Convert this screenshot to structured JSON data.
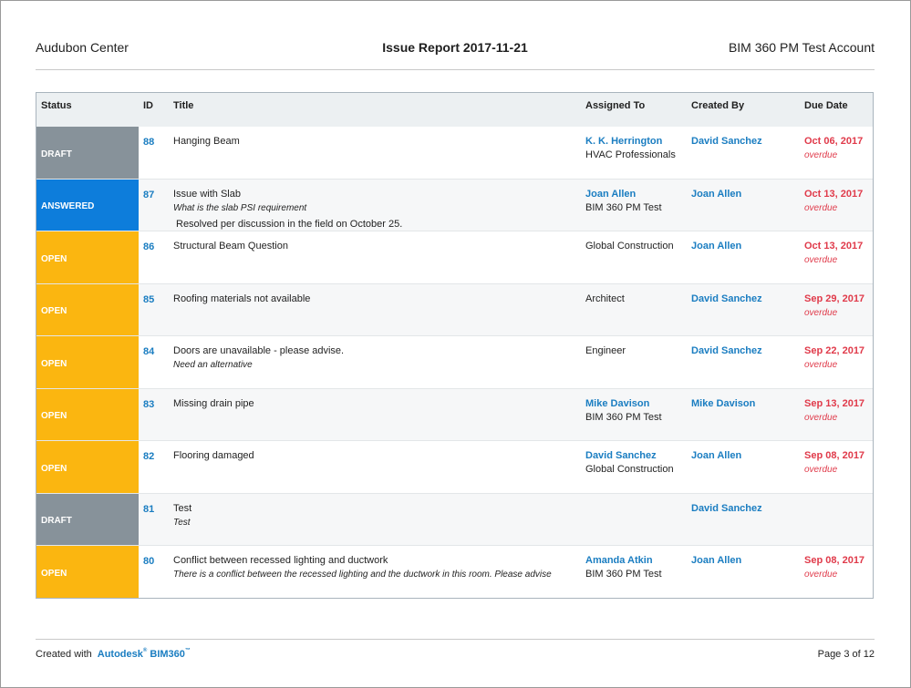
{
  "header": {
    "project": "Audubon Center",
    "title": "Issue Report 2017-11-21",
    "account": "BIM 360 PM Test Account"
  },
  "columns": {
    "status": "Status",
    "id": "ID",
    "title": "Title",
    "assigned_to": "Assigned To",
    "created_by": "Created By",
    "due_date": "Due Date"
  },
  "rows": [
    {
      "status": "DRAFT",
      "status_color": "#87929a",
      "id": "88",
      "title": "Hanging Beam",
      "subtitle": "",
      "note": "",
      "assigned_name": "K. K. Herrington",
      "assigned_company": "HVAC Professionals",
      "created_by": "David Sanchez",
      "due_date": "Oct 06, 2017",
      "due_flag": "overdue"
    },
    {
      "status": "ANSWERED",
      "status_color": "#0d7ddb",
      "id": "87",
      "title": "Issue with Slab",
      "subtitle": "What is the slab PSI requirement",
      "note": "Resolved per discussion in the field on October 25.",
      "assigned_name": "Joan Allen",
      "assigned_company": "BIM 360 PM Test",
      "created_by": "Joan Allen",
      "due_date": "Oct 13, 2017",
      "due_flag": "overdue"
    },
    {
      "status": "OPEN",
      "status_color": "#fbb610",
      "id": "86",
      "title": "Structural Beam Question",
      "subtitle": "",
      "note": "",
      "assigned_name": "",
      "assigned_company": "Global Construction",
      "created_by": "Joan Allen",
      "due_date": "Oct 13, 2017",
      "due_flag": "overdue"
    },
    {
      "status": "OPEN",
      "status_color": "#fbb610",
      "id": "85",
      "title": "Roofing materials not available",
      "subtitle": "",
      "note": "",
      "assigned_name": "",
      "assigned_company": "Architect",
      "created_by": "David Sanchez",
      "due_date": "Sep 29, 2017",
      "due_flag": "overdue"
    },
    {
      "status": "OPEN",
      "status_color": "#fbb610",
      "id": "84",
      "title": "Doors are unavailable - please advise.",
      "subtitle": "Need an alternative",
      "note": "",
      "assigned_name": "",
      "assigned_company": "Engineer",
      "created_by": "David Sanchez",
      "due_date": "Sep 22, 2017",
      "due_flag": "overdue"
    },
    {
      "status": "OPEN",
      "status_color": "#fbb610",
      "id": "83",
      "title": "Missing drain pipe",
      "subtitle": "",
      "note": "",
      "assigned_name": "Mike Davison",
      "assigned_company": "BIM 360 PM Test",
      "created_by": "Mike Davison",
      "due_date": "Sep 13, 2017",
      "due_flag": "overdue"
    },
    {
      "status": "OPEN",
      "status_color": "#fbb610",
      "id": "82",
      "title": "Flooring damaged",
      "subtitle": "",
      "note": "",
      "assigned_name": "David Sanchez",
      "assigned_company": "Global Construction",
      "created_by": "Joan Allen",
      "due_date": "Sep 08, 2017",
      "due_flag": "overdue"
    },
    {
      "status": "DRAFT",
      "status_color": "#87929a",
      "id": "81",
      "title": "Test",
      "subtitle": "Test",
      "note": "",
      "assigned_name": "",
      "assigned_company": "",
      "created_by": "David Sanchez",
      "due_date": "",
      "due_flag": ""
    },
    {
      "status": "OPEN",
      "status_color": "#fbb610",
      "id": "80",
      "title": "Conflict between recessed lighting and ductwork",
      "subtitle": "There is a conflict between the recessed lighting and the ductwork in this room. Please advise",
      "note": "",
      "assigned_name": "Amanda Atkin",
      "assigned_company": "BIM 360 PM Test",
      "created_by": "Joan Allen",
      "due_date": "Sep 08, 2017",
      "due_flag": "overdue"
    }
  ],
  "footer": {
    "created_with": "Created with",
    "brand": "Autodesk",
    "brand_mark": "®",
    "product": "BIM360",
    "product_mark": "™",
    "page": "Page 3 of 12"
  }
}
